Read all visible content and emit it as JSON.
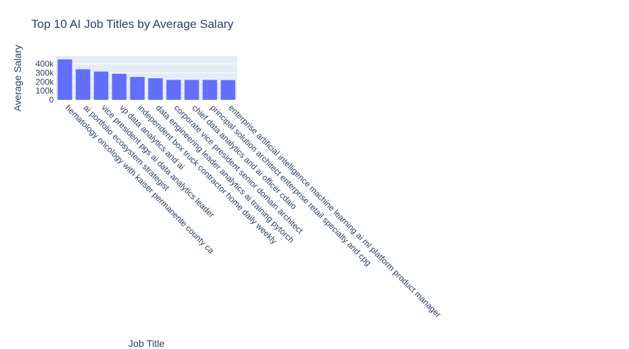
{
  "chart_data": {
    "type": "bar",
    "title": "Top 10 AI Job Titles by Average Salary",
    "xlabel": "Job Title",
    "ylabel": "Average Salary",
    "ylim": [
      0,
      490000
    ],
    "yticks": [
      0,
      100000,
      200000,
      300000,
      400000
    ],
    "ytick_labels": [
      "0",
      "100k",
      "200k",
      "300k",
      "400k"
    ],
    "grid": true,
    "colors": {
      "bar": "#636efa",
      "plot_bg": "#e5ecf6",
      "text": "#2a3f5f"
    },
    "categories": [
      "hematology oncology with kaiser permanente county ca",
      "ai portfolio ecosystem strategist",
      "vice president pgs ai data analytics leader",
      "vp data analytics and ai",
      "independent box truck contractor home daily weekly",
      "data engineering leader analytics ai training pytorch",
      "corporate vice president senior domain architect",
      "chief data analytics and ai officer cdaio",
      "principal solution architect enterprise retail specialty and cpg",
      "enterprise artificial intelligence machine learning ai ml platform product manager"
    ],
    "values": [
      450000,
      340000,
      315000,
      290000,
      255000,
      240000,
      222000,
      222000,
      222000,
      220000
    ]
  }
}
